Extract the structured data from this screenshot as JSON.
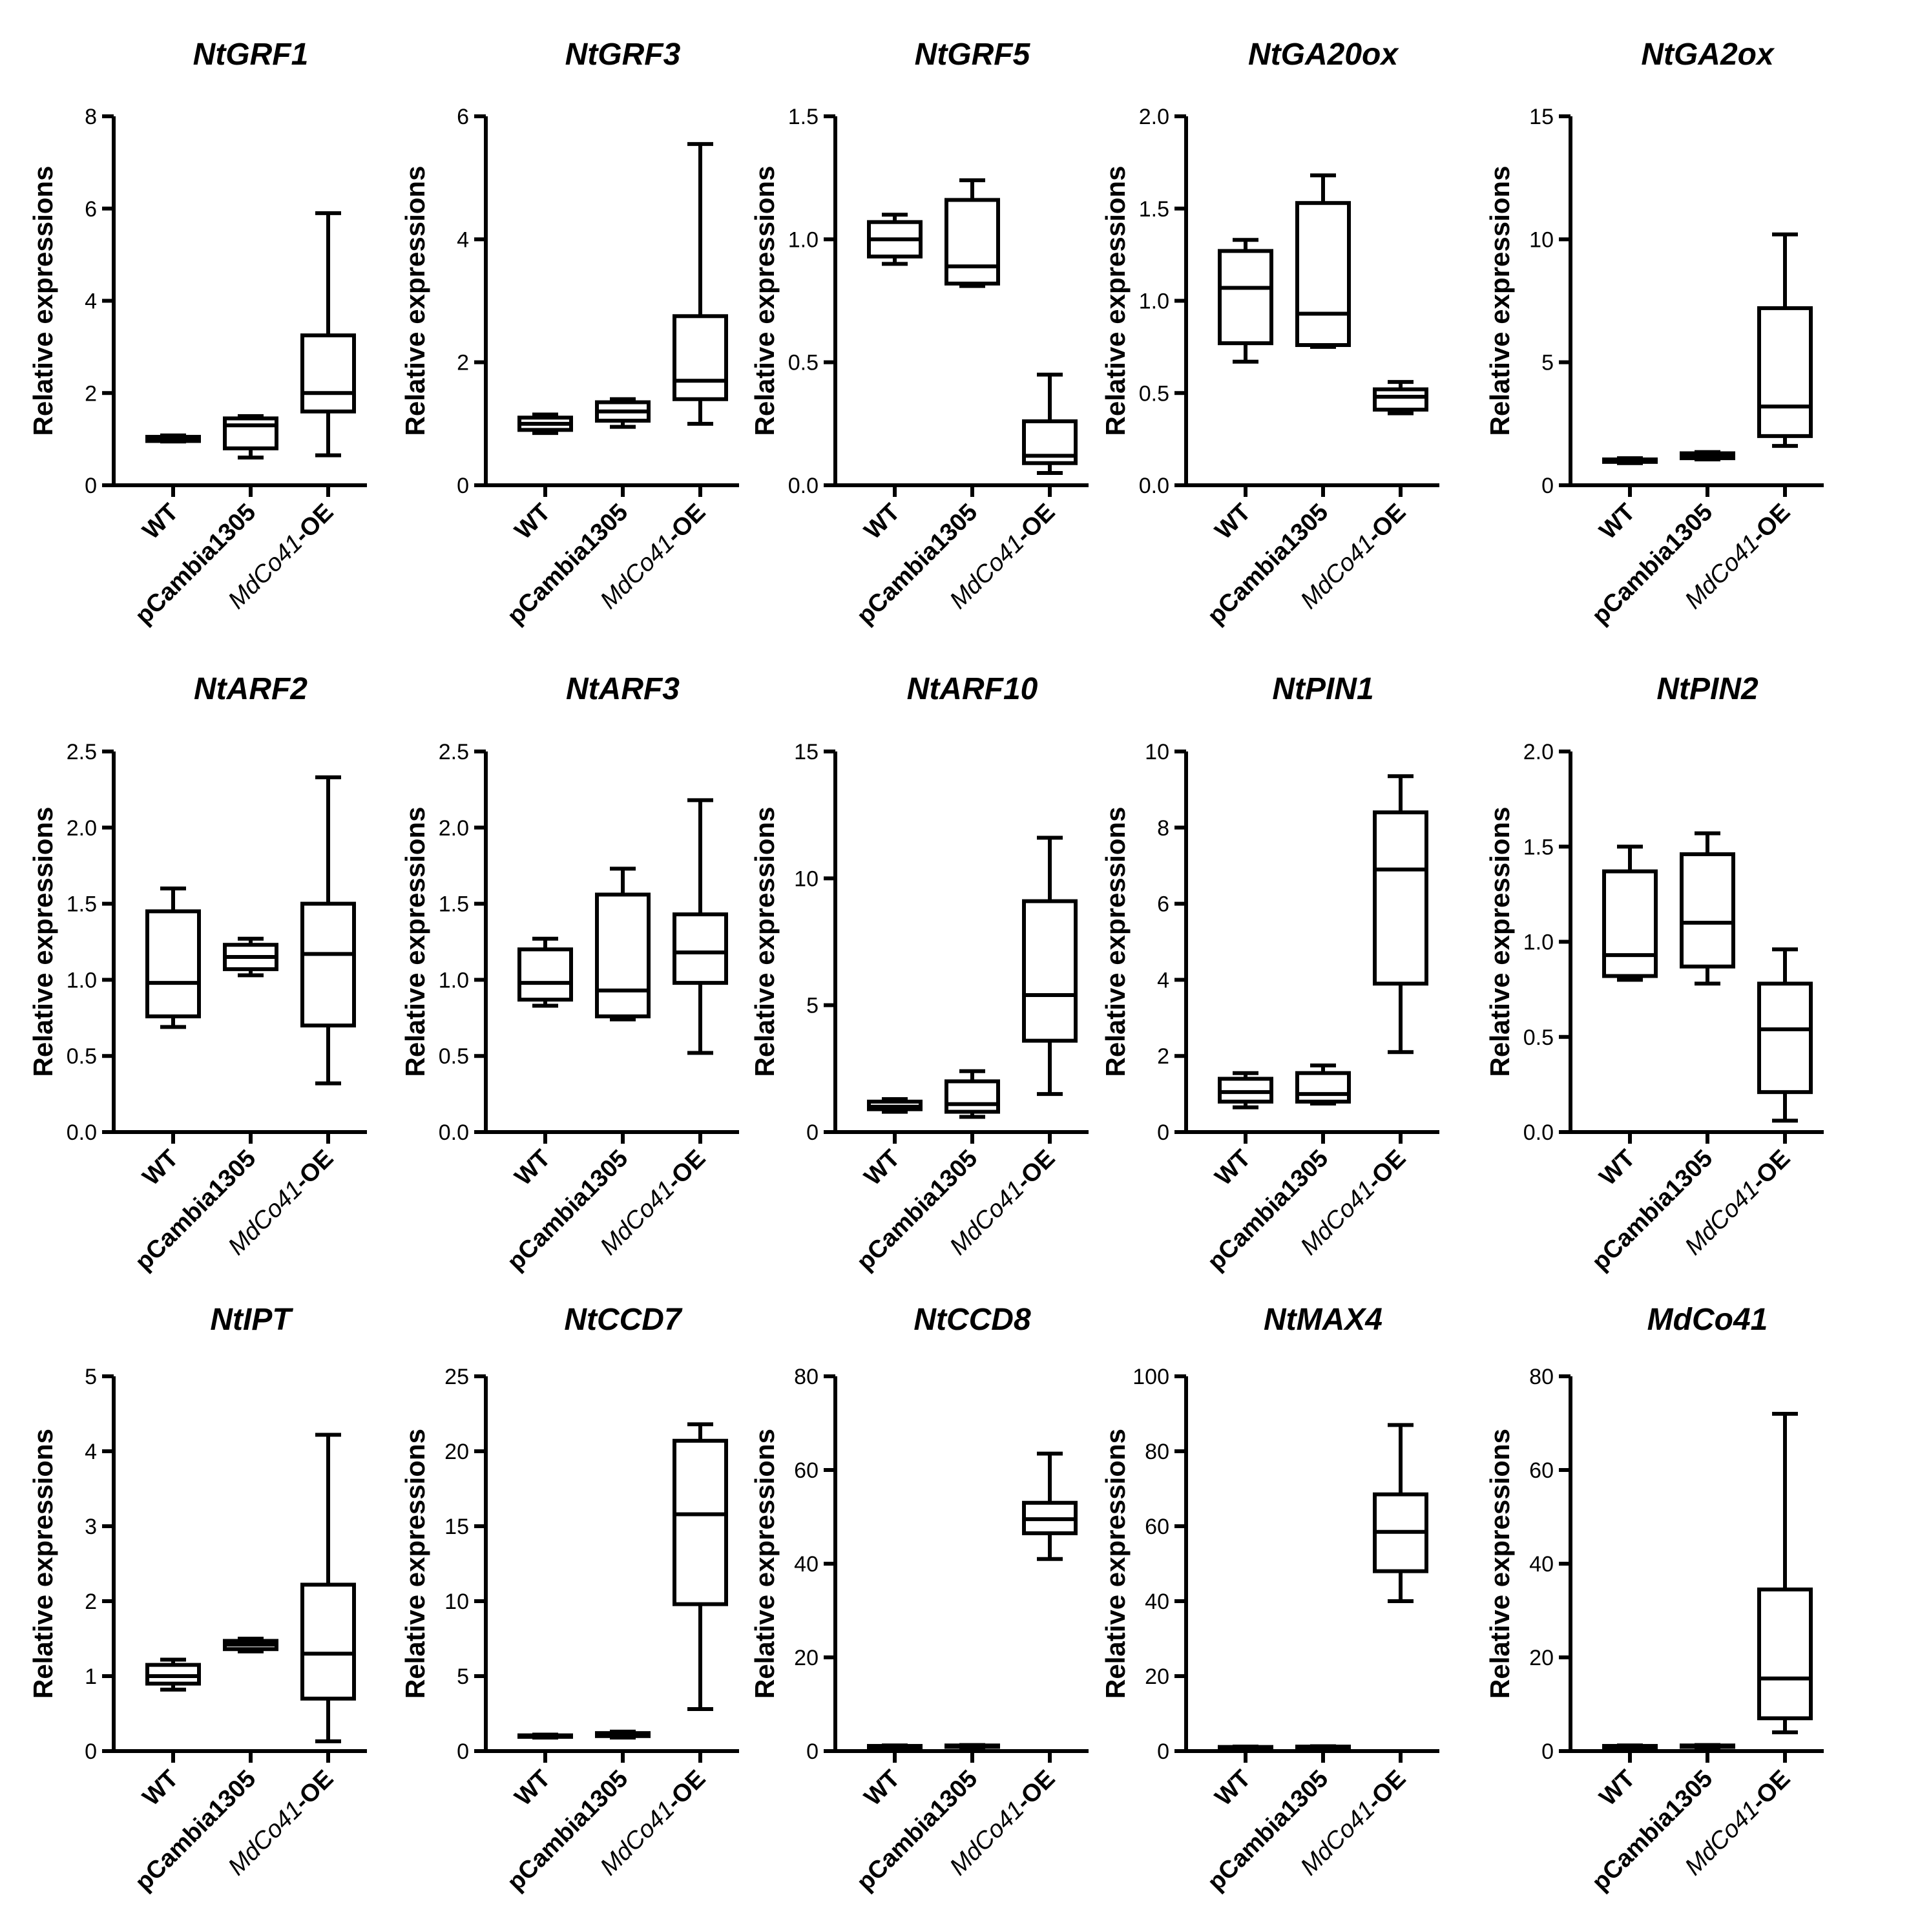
{
  "figure": {
    "y_axis_label": "Relative expressions",
    "categories": [
      {
        "name": "WT",
        "parts": [
          {
            "t": "WT",
            "italic": false
          }
        ]
      },
      {
        "name": "pCambia1305",
        "parts": [
          {
            "t": "pCambia1305",
            "italic": false
          }
        ]
      },
      {
        "name": "MdCo41-OE",
        "parts": [
          {
            "t": "MdCo41",
            "italic": true
          },
          {
            "t": "-OE",
            "italic": false
          }
        ]
      }
    ]
  },
  "chart_data": [
    {
      "type": "box",
      "title": "NtGRF1",
      "ylabel": "Relative expressions",
      "ylim": [
        0,
        8
      ],
      "yticks": [
        0,
        2,
        4,
        6,
        8
      ],
      "tick_labels": [
        "0",
        "2",
        "4",
        "6",
        "8"
      ],
      "boxes": [
        {
          "category": "WT",
          "min": 0.95,
          "q1": 0.96,
          "median": 1.0,
          "q3": 1.05,
          "max": 1.08
        },
        {
          "category": "pCambia1305",
          "min": 0.6,
          "q1": 0.8,
          "median": 1.3,
          "q3": 1.45,
          "max": 1.5
        },
        {
          "category": "MdCo41-OE",
          "min": 0.65,
          "q1": 1.6,
          "median": 2.0,
          "q3": 3.25,
          "max": 5.9
        }
      ]
    },
    {
      "type": "box",
      "title": "NtGRF3",
      "ylabel": "Relative expressions",
      "ylim": [
        0,
        6
      ],
      "yticks": [
        0,
        2,
        4,
        6
      ],
      "tick_labels": [
        "0",
        "2",
        "4",
        "6"
      ],
      "boxes": [
        {
          "category": "WT",
          "min": 0.85,
          "q1": 0.9,
          "median": 1.0,
          "q3": 1.1,
          "max": 1.15
        },
        {
          "category": "pCambia1305",
          "min": 0.95,
          "q1": 1.05,
          "median": 1.2,
          "q3": 1.35,
          "max": 1.4
        },
        {
          "category": "MdCo41-OE",
          "min": 1.0,
          "q1": 1.4,
          "median": 1.7,
          "q3": 2.75,
          "max": 5.55
        }
      ]
    },
    {
      "type": "box",
      "title": "NtGRF5",
      "ylabel": "Relative expressions",
      "ylim": [
        0,
        1.5
      ],
      "yticks": [
        0,
        0.5,
        1.0,
        1.5
      ],
      "tick_labels": [
        "0.0",
        "0.5",
        "1.0",
        "1.5"
      ],
      "boxes": [
        {
          "category": "WT",
          "min": 0.9,
          "q1": 0.93,
          "median": 1.0,
          "q3": 1.07,
          "max": 1.1
        },
        {
          "category": "pCambia1305",
          "min": 0.81,
          "q1": 0.82,
          "median": 0.89,
          "q3": 1.16,
          "max": 1.24
        },
        {
          "category": "MdCo41-OE",
          "min": 0.05,
          "q1": 0.09,
          "median": 0.12,
          "q3": 0.26,
          "max": 0.45
        }
      ]
    },
    {
      "type": "box",
      "title": "NtGA20ox",
      "ylabel": "Relative expressions",
      "ylim": [
        0,
        2.0
      ],
      "yticks": [
        0,
        0.5,
        1.0,
        1.5,
        2.0
      ],
      "tick_labels": [
        "0.0",
        "0.5",
        "1.0",
        "1.5",
        "2.0"
      ],
      "boxes": [
        {
          "category": "WT",
          "min": 0.67,
          "q1": 0.77,
          "median": 1.07,
          "q3": 1.27,
          "max": 1.33
        },
        {
          "category": "pCambia1305",
          "min": 0.75,
          "q1": 0.76,
          "median": 0.93,
          "q3": 1.53,
          "max": 1.68
        },
        {
          "category": "MdCo41-OE",
          "min": 0.39,
          "q1": 0.41,
          "median": 0.48,
          "q3": 0.52,
          "max": 0.56
        }
      ]
    },
    {
      "type": "box",
      "title": "NtGA2ox",
      "ylabel": "Relative expressions",
      "ylim": [
        0,
        15
      ],
      "yticks": [
        0,
        5,
        10,
        15
      ],
      "tick_labels": [
        "0",
        "5",
        "10",
        "15"
      ],
      "boxes": [
        {
          "category": "WT",
          "min": 0.9,
          "q1": 0.95,
          "median": 1.0,
          "q3": 1.05,
          "max": 1.1
        },
        {
          "category": "pCambia1305",
          "min": 1.05,
          "q1": 1.1,
          "median": 1.2,
          "q3": 1.3,
          "max": 1.35
        },
        {
          "category": "MdCo41-OE",
          "min": 1.6,
          "q1": 2.0,
          "median": 3.2,
          "q3": 7.2,
          "max": 10.2
        }
      ]
    },
    {
      "type": "box",
      "title": "NtARF2",
      "ylabel": "Relative expressions",
      "ylim": [
        0,
        2.5
      ],
      "yticks": [
        0,
        0.5,
        1.0,
        1.5,
        2.0,
        2.5
      ],
      "tick_labels": [
        "0.0",
        "0.5",
        "1.0",
        "1.5",
        "2.0",
        "2.5"
      ],
      "boxes": [
        {
          "category": "WT",
          "min": 0.69,
          "q1": 0.76,
          "median": 0.98,
          "q3": 1.45,
          "max": 1.6
        },
        {
          "category": "pCambia1305",
          "min": 1.03,
          "q1": 1.07,
          "median": 1.15,
          "q3": 1.23,
          "max": 1.27
        },
        {
          "category": "MdCo41-OE",
          "min": 0.32,
          "q1": 0.7,
          "median": 1.17,
          "q3": 1.5,
          "max": 2.33
        }
      ]
    },
    {
      "type": "box",
      "title": "NtARF3",
      "ylabel": "Relative expressions",
      "ylim": [
        0,
        2.5
      ],
      "yticks": [
        0,
        0.5,
        1.0,
        1.5,
        2.0,
        2.5
      ],
      "tick_labels": [
        "0.0",
        "0.5",
        "1.0",
        "1.5",
        "2.0",
        "2.5"
      ],
      "boxes": [
        {
          "category": "WT",
          "min": 0.83,
          "q1": 0.87,
          "median": 0.98,
          "q3": 1.2,
          "max": 1.27
        },
        {
          "category": "pCambia1305",
          "min": 0.74,
          "q1": 0.76,
          "median": 0.93,
          "q3": 1.56,
          "max": 1.73
        },
        {
          "category": "MdCo41-OE",
          "min": 0.52,
          "q1": 0.98,
          "median": 1.18,
          "q3": 1.43,
          "max": 2.18
        }
      ]
    },
    {
      "type": "box",
      "title": "NtARF10",
      "ylabel": "Relative expressions",
      "ylim": [
        0,
        15
      ],
      "yticks": [
        0,
        5,
        10,
        15
      ],
      "tick_labels": [
        "0",
        "5",
        "10",
        "15"
      ],
      "boxes": [
        {
          "category": "WT",
          "min": 0.8,
          "q1": 0.9,
          "median": 1.0,
          "q3": 1.2,
          "max": 1.3
        },
        {
          "category": "pCambia1305",
          "min": 0.6,
          "q1": 0.8,
          "median": 1.1,
          "q3": 2.0,
          "max": 2.4
        },
        {
          "category": "MdCo41-OE",
          "min": 1.5,
          "q1": 3.6,
          "median": 5.4,
          "q3": 9.1,
          "max": 11.6
        }
      ]
    },
    {
      "type": "box",
      "title": "NtPIN1",
      "ylabel": "Relative expressions",
      "ylim": [
        0,
        10
      ],
      "yticks": [
        0,
        2,
        4,
        6,
        8,
        10
      ],
      "tick_labels": [
        "0",
        "2",
        "4",
        "6",
        "8",
        "10"
      ],
      "boxes": [
        {
          "category": "WT",
          "min": 0.65,
          "q1": 0.8,
          "median": 1.05,
          "q3": 1.4,
          "max": 1.55
        },
        {
          "category": "pCambia1305",
          "min": 0.75,
          "q1": 0.8,
          "median": 1.0,
          "q3": 1.55,
          "max": 1.75
        },
        {
          "category": "MdCo41-OE",
          "min": 2.1,
          "q1": 3.9,
          "median": 6.9,
          "q3": 8.4,
          "max": 9.35
        }
      ]
    },
    {
      "type": "box",
      "title": "NtPIN2",
      "ylabel": "Relative expressions",
      "ylim": [
        0,
        2.0
      ],
      "yticks": [
        0,
        0.5,
        1.0,
        1.5,
        2.0
      ],
      "tick_labels": [
        "0.0",
        "0.5",
        "1.0",
        "1.5",
        "2.0"
      ],
      "boxes": [
        {
          "category": "WT",
          "min": 0.8,
          "q1": 0.82,
          "median": 0.93,
          "q3": 1.37,
          "max": 1.5
        },
        {
          "category": "pCambia1305",
          "min": 0.78,
          "q1": 0.87,
          "median": 1.1,
          "q3": 1.46,
          "max": 1.57
        },
        {
          "category": "MdCo41-OE",
          "min": 0.06,
          "q1": 0.21,
          "median": 0.54,
          "q3": 0.78,
          "max": 0.96
        }
      ]
    },
    {
      "type": "box",
      "title": "NtIPT",
      "ylabel": "Relative expressions",
      "ylim": [
        0,
        5
      ],
      "yticks": [
        0,
        1,
        2,
        3,
        4,
        5
      ],
      "tick_labels": [
        "0",
        "1",
        "2",
        "3",
        "4",
        "5"
      ],
      "boxes": [
        {
          "category": "WT",
          "min": 0.82,
          "q1": 0.9,
          "median": 1.0,
          "q3": 1.15,
          "max": 1.22
        },
        {
          "category": "pCambia1305",
          "min": 1.33,
          "q1": 1.36,
          "median": 1.42,
          "q3": 1.47,
          "max": 1.5
        },
        {
          "category": "MdCo41-OE",
          "min": 0.13,
          "q1": 0.7,
          "median": 1.3,
          "q3": 2.22,
          "max": 4.22
        }
      ]
    },
    {
      "type": "box",
      "title": "NtCCD7",
      "ylabel": "Relative expressions",
      "ylim": [
        0,
        25
      ],
      "yticks": [
        0,
        5,
        10,
        15,
        20,
        25
      ],
      "tick_labels": [
        "0",
        "5",
        "10",
        "15",
        "20",
        "25"
      ],
      "boxes": [
        {
          "category": "WT",
          "min": 0.9,
          "q1": 0.95,
          "median": 1.0,
          "q3": 1.05,
          "max": 1.1
        },
        {
          "category": "pCambia1305",
          "min": 0.9,
          "q1": 1.0,
          "median": 1.1,
          "q3": 1.2,
          "max": 1.3
        },
        {
          "category": "MdCo41-OE",
          "min": 2.8,
          "q1": 9.8,
          "median": 15.8,
          "q3": 20.7,
          "max": 21.8
        }
      ]
    },
    {
      "type": "box",
      "title": "NtCCD8",
      "ylabel": "Relative expressions",
      "ylim": [
        0,
        80
      ],
      "yticks": [
        0,
        20,
        40,
        60,
        80
      ],
      "tick_labels": [
        "0",
        "20",
        "40",
        "60",
        "80"
      ],
      "boxes": [
        {
          "category": "WT",
          "min": 0.8,
          "q1": 0.9,
          "median": 1.0,
          "q3": 1.1,
          "max": 1.2
        },
        {
          "category": "pCambia1305",
          "min": 0.8,
          "q1": 0.9,
          "median": 1.0,
          "q3": 1.2,
          "max": 1.3
        },
        {
          "category": "MdCo41-OE",
          "min": 41,
          "q1": 46.5,
          "median": 49.5,
          "q3": 53,
          "max": 63.5
        }
      ]
    },
    {
      "type": "box",
      "title": "NtMAX4",
      "ylabel": "Relative expressions",
      "ylim": [
        0,
        100
      ],
      "yticks": [
        0,
        20,
        40,
        60,
        80,
        100
      ],
      "tick_labels": [
        "0",
        "20",
        "40",
        "60",
        "80",
        "100"
      ],
      "boxes": [
        {
          "category": "WT",
          "min": 0.8,
          "q1": 0.9,
          "median": 1.0,
          "q3": 1.1,
          "max": 1.2
        },
        {
          "category": "pCambia1305",
          "min": 0.8,
          "q1": 0.9,
          "median": 1.0,
          "q3": 1.2,
          "max": 1.3
        },
        {
          "category": "MdCo41-OE",
          "min": 40,
          "q1": 48,
          "median": 58.5,
          "q3": 68.5,
          "max": 87
        }
      ]
    },
    {
      "type": "box",
      "title": "MdCo41",
      "ylabel": "Relative expressions",
      "ylim": [
        0,
        80
      ],
      "yticks": [
        0,
        20,
        40,
        60,
        80
      ],
      "tick_labels": [
        "0",
        "20",
        "40",
        "60",
        "80"
      ],
      "boxes": [
        {
          "category": "WT",
          "min": 0.8,
          "q1": 0.9,
          "median": 1.0,
          "q3": 1.1,
          "max": 1.2
        },
        {
          "category": "pCambia1305",
          "min": 0.8,
          "q1": 0.9,
          "median": 1.0,
          "q3": 1.2,
          "max": 1.3
        },
        {
          "category": "MdCo41-OE",
          "min": 4.0,
          "q1": 7.0,
          "median": 15.5,
          "q3": 34.5,
          "max": 72
        }
      ]
    }
  ]
}
